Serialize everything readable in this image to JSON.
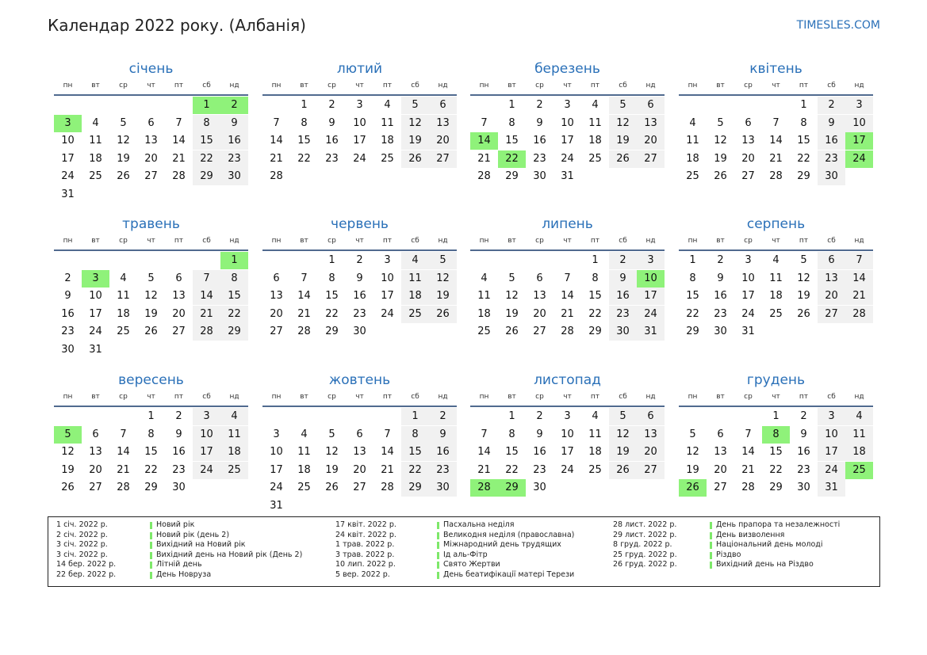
{
  "header": {
    "title": "Календар 2022 року. (Албанія)",
    "site": "TIMESLES.COM"
  },
  "weekdays": [
    "пн",
    "вт",
    "ср",
    "чт",
    "пт",
    "сб",
    "нд"
  ],
  "months": [
    {
      "name": "січень",
      "offset": 5,
      "days": 31,
      "holidays": [
        1,
        2,
        3
      ]
    },
    {
      "name": "лютий",
      "offset": 1,
      "days": 28,
      "holidays": []
    },
    {
      "name": "березень",
      "offset": 1,
      "days": 31,
      "holidays": [
        14,
        22
      ]
    },
    {
      "name": "квітень",
      "offset": 4,
      "days": 30,
      "holidays": [
        17,
        24
      ]
    },
    {
      "name": "травень",
      "offset": 6,
      "days": 31,
      "holidays": [
        1,
        3
      ]
    },
    {
      "name": "червень",
      "offset": 2,
      "days": 30,
      "holidays": []
    },
    {
      "name": "липень",
      "offset": 4,
      "days": 31,
      "holidays": [
        10
      ]
    },
    {
      "name": "серпень",
      "offset": 0,
      "days": 31,
      "holidays": []
    },
    {
      "name": "вересень",
      "offset": 3,
      "days": 30,
      "holidays": [
        5
      ]
    },
    {
      "name": "жовтень",
      "offset": 5,
      "days": 31,
      "holidays": []
    },
    {
      "name": "листопад",
      "offset": 1,
      "days": 30,
      "holidays": [
        28,
        29
      ]
    },
    {
      "name": "грудень",
      "offset": 3,
      "days": 31,
      "holidays": [
        8,
        25,
        26
      ]
    }
  ],
  "legend": [
    [
      {
        "date": "1 січ. 2022 р.",
        "name": "Новий рік"
      },
      {
        "date": "2 січ. 2022 р.",
        "name": "Новий рік (день 2)"
      },
      {
        "date": "3 січ. 2022 р.",
        "name": "Вихідний на Новий рік"
      },
      {
        "date": "3 січ. 2022 р.",
        "name": "Вихідний день на Новий рік (День 2)"
      },
      {
        "date": "14 бер. 2022 р.",
        "name": "Літній день"
      },
      {
        "date": "22 бер. 2022 р.",
        "name": "День Новруза"
      }
    ],
    [
      {
        "date": "17 квіт. 2022 р.",
        "name": "Пасхальна неділя"
      },
      {
        "date": "24 квіт. 2022 р.",
        "name": "Великодня неділя (православна)"
      },
      {
        "date": "1 трав. 2022 р.",
        "name": "Міжнародний день трудящих"
      },
      {
        "date": "3 трав. 2022 р.",
        "name": "Ід аль-Фітр"
      },
      {
        "date": "10 лип. 2022 р.",
        "name": "Свято Жертви"
      },
      {
        "date": "5 вер. 2022 р.",
        "name": "День беатифікації матері Терези"
      }
    ],
    [
      {
        "date": "28 лист. 2022 р.",
        "name": "День прапора та незалежності"
      },
      {
        "date": "29 лист. 2022 р.",
        "name": "День визволення"
      },
      {
        "date": "8 груд. 2022 р.",
        "name": "Національний день молоді"
      },
      {
        "date": "25 груд. 2022 р.",
        "name": "Різдво"
      },
      {
        "date": "26 груд. 2022 р.",
        "name": "Вихідний день на Різдво"
      }
    ]
  ]
}
